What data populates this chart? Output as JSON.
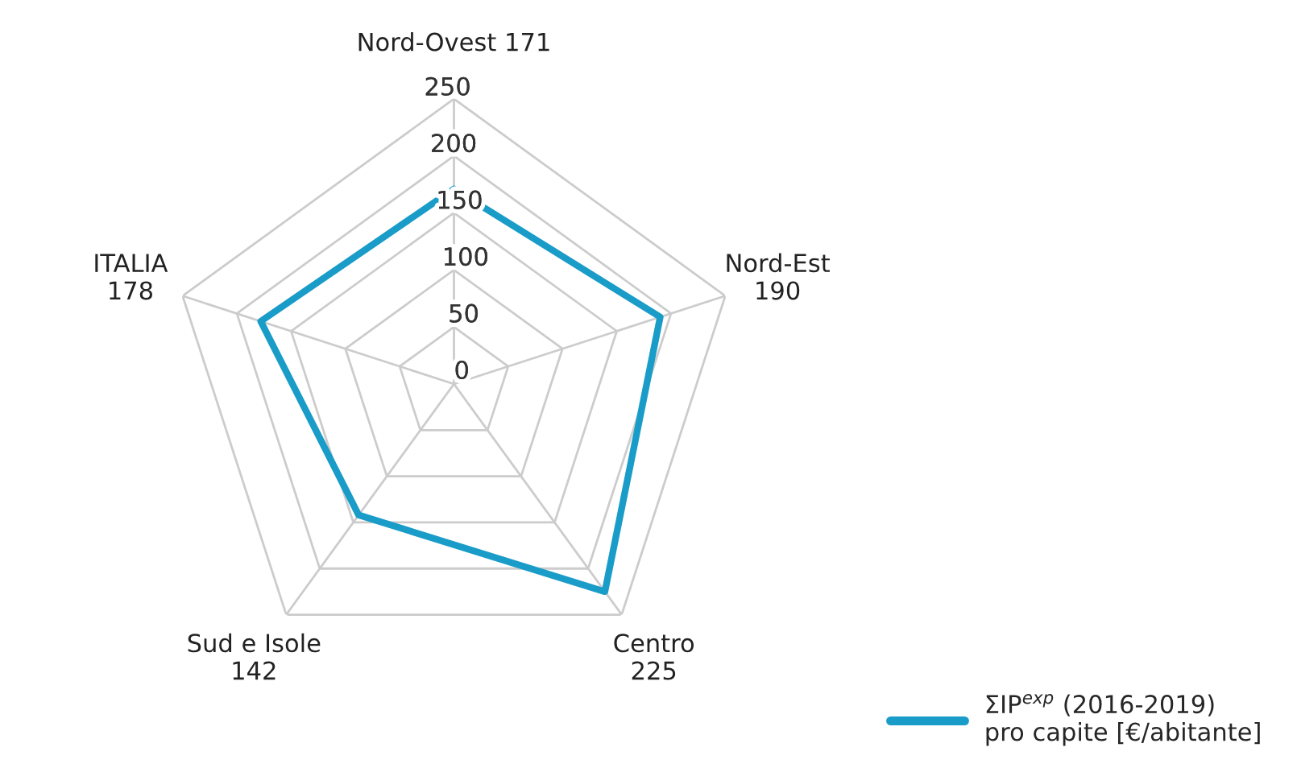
{
  "chart_data": {
    "type": "radar",
    "categories": [
      "Nord-Ovest 171",
      "Nord-Est 190",
      "Centro 225",
      "Sud e Isole 142",
      "ITALIA 178"
    ],
    "series": [
      {
        "name": "ΣIP$^{exp}$ (2016-2019)\npro capite [€/abitante]",
        "color": "#1a9cc8",
        "values": [
          171,
          190,
          225,
          142,
          178
        ]
      }
    ],
    "ylim": [
      0,
      250
    ],
    "yticks": [
      0,
      50,
      100,
      150,
      200,
      250
    ],
    "grid": true,
    "legend": "bottom right",
    "marker": "none",
    "line_style": "solid"
  }
}
